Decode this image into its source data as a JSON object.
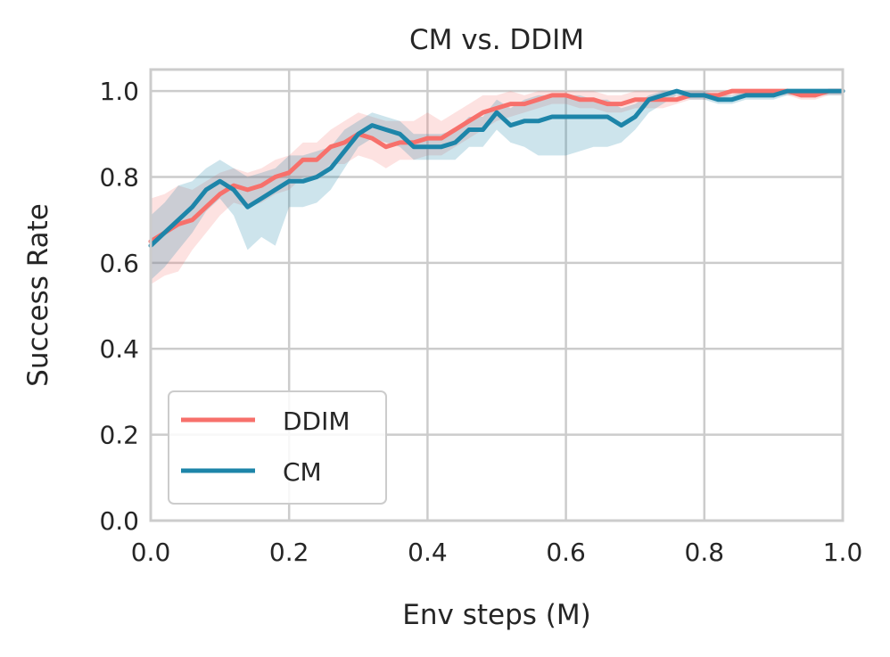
{
  "chart_data": {
    "type": "line",
    "title": "CM vs. DDIM",
    "xlabel": "Env steps (M)",
    "ylabel": "Success Rate",
    "xlim": [
      0,
      1.0
    ],
    "ylim": [
      0,
      1.05
    ],
    "xticks": [
      "0.0",
      "0.2",
      "0.4",
      "0.6",
      "0.8",
      "1.0"
    ],
    "yticks": [
      "0.0",
      "0.2",
      "0.4",
      "0.6",
      "0.8",
      "1.0"
    ],
    "xtick_values": [
      0,
      0.2,
      0.4,
      0.6,
      0.8,
      1.0
    ],
    "ytick_values": [
      0,
      0.2,
      0.4,
      0.6,
      0.8,
      1.0
    ],
    "grid": true,
    "legend_position": "lower-left",
    "x": [
      0.0,
      0.02,
      0.04,
      0.06,
      0.08,
      0.1,
      0.12,
      0.14,
      0.16,
      0.18,
      0.2,
      0.22,
      0.24,
      0.26,
      0.28,
      0.3,
      0.32,
      0.34,
      0.36,
      0.38,
      0.4,
      0.42,
      0.44,
      0.46,
      0.48,
      0.5,
      0.52,
      0.54,
      0.56,
      0.58,
      0.6,
      0.62,
      0.64,
      0.66,
      0.68,
      0.7,
      0.72,
      0.74,
      0.76,
      0.78,
      0.8,
      0.82,
      0.84,
      0.86,
      0.88,
      0.9,
      0.92,
      0.94,
      0.96,
      0.98,
      1.0
    ],
    "series": [
      {
        "name": "DDIM",
        "color": "#f7706b",
        "values": [
          0.65,
          0.67,
          0.69,
          0.7,
          0.73,
          0.76,
          0.78,
          0.77,
          0.78,
          0.8,
          0.81,
          0.84,
          0.84,
          0.87,
          0.88,
          0.9,
          0.89,
          0.87,
          0.88,
          0.88,
          0.89,
          0.89,
          0.91,
          0.93,
          0.95,
          0.96,
          0.97,
          0.97,
          0.98,
          0.99,
          0.99,
          0.98,
          0.98,
          0.97,
          0.97,
          0.98,
          0.98,
          0.98,
          0.98,
          0.99,
          0.99,
          0.99,
          1.0,
          1.0,
          1.0,
          1.0,
          1.0,
          0.99,
          0.99,
          1.0,
          1.0
        ],
        "lower": [
          0.55,
          0.57,
          0.58,
          0.63,
          0.67,
          0.71,
          0.74,
          0.73,
          0.74,
          0.76,
          0.77,
          0.8,
          0.8,
          0.83,
          0.83,
          0.85,
          0.84,
          0.82,
          0.84,
          0.84,
          0.85,
          0.85,
          0.87,
          0.89,
          0.91,
          0.93,
          0.94,
          0.95,
          0.96,
          0.97,
          0.97,
          0.96,
          0.96,
          0.95,
          0.95,
          0.96,
          0.96,
          0.96,
          0.97,
          0.98,
          0.98,
          0.98,
          0.99,
          0.99,
          0.99,
          0.99,
          0.99,
          0.98,
          0.98,
          0.99,
          0.99
        ],
        "upper": [
          0.75,
          0.76,
          0.78,
          0.77,
          0.79,
          0.81,
          0.82,
          0.81,
          0.82,
          0.84,
          0.85,
          0.88,
          0.88,
          0.91,
          0.93,
          0.95,
          0.94,
          0.93,
          0.93,
          0.93,
          0.95,
          0.93,
          0.95,
          0.97,
          0.99,
          0.99,
          1.0,
          0.99,
          1.0,
          1.0,
          1.0,
          1.0,
          1.0,
          0.99,
          0.99,
          1.0,
          1.0,
          1.0,
          0.99,
          1.0,
          1.0,
          1.0,
          1.0,
          1.0,
          1.0,
          1.0,
          1.0,
          1.0,
          1.0,
          1.0,
          1.0
        ]
      },
      {
        "name": "CM",
        "color": "#1d85a9",
        "values": [
          0.64,
          0.67,
          0.7,
          0.73,
          0.77,
          0.79,
          0.77,
          0.73,
          0.75,
          0.77,
          0.79,
          0.79,
          0.8,
          0.82,
          0.86,
          0.9,
          0.92,
          0.91,
          0.9,
          0.87,
          0.87,
          0.87,
          0.88,
          0.91,
          0.91,
          0.95,
          0.92,
          0.93,
          0.93,
          0.94,
          0.94,
          0.94,
          0.94,
          0.94,
          0.92,
          0.94,
          0.98,
          0.99,
          1.0,
          0.99,
          0.99,
          0.98,
          0.98,
          0.99,
          0.99,
          0.99,
          1.0,
          1.0,
          1.0,
          1.0,
          1.0
        ],
        "lower": [
          0.56,
          0.59,
          0.63,
          0.67,
          0.72,
          0.75,
          0.71,
          0.63,
          0.66,
          0.64,
          0.73,
          0.73,
          0.74,
          0.77,
          0.82,
          0.87,
          0.89,
          0.88,
          0.87,
          0.84,
          0.84,
          0.84,
          0.84,
          0.87,
          0.87,
          0.91,
          0.88,
          0.87,
          0.85,
          0.85,
          0.85,
          0.86,
          0.87,
          0.87,
          0.88,
          0.91,
          0.95,
          0.97,
          0.99,
          0.98,
          0.98,
          0.97,
          0.97,
          0.98,
          0.98,
          0.98,
          0.99,
          0.99,
          0.99,
          0.99,
          0.99
        ],
        "upper": [
          0.71,
          0.74,
          0.78,
          0.79,
          0.82,
          0.84,
          0.82,
          0.8,
          0.81,
          0.82,
          0.85,
          0.85,
          0.86,
          0.87,
          0.91,
          0.93,
          0.95,
          0.94,
          0.93,
          0.9,
          0.9,
          0.9,
          0.91,
          0.94,
          0.94,
          0.98,
          0.96,
          0.98,
          0.99,
          0.99,
          0.99,
          0.99,
          0.98,
          0.98,
          0.96,
          0.97,
          0.99,
          1.0,
          1.0,
          1.0,
          1.0,
          0.99,
          0.99,
          1.0,
          1.0,
          1.0,
          1.0,
          1.0,
          1.0,
          1.0,
          1.0
        ]
      }
    ]
  }
}
